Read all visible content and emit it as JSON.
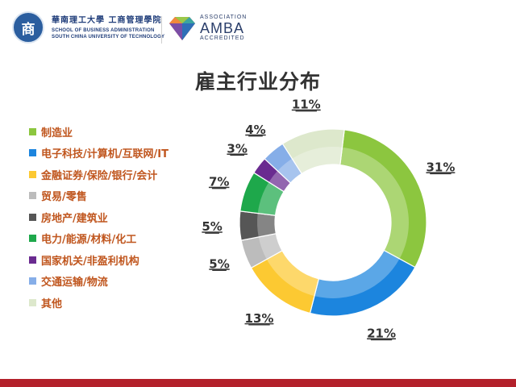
{
  "header": {
    "university_cn": "華南理工大學 工商管理學院",
    "university_en_1": "SCHOOL OF BUSINESS ADMINISTRATION",
    "university_en_2": "SOUTH CHINA UNIVERSITY OF TECHNOLOGY",
    "seal_char": "商",
    "accreditation_top": "ASSOCIATION",
    "accreditation_name": "AMBA",
    "accreditation_bottom": "ACCREDITED"
  },
  "colors": {
    "accent_bar": "#b3212b",
    "legend_text": "#c0561e"
  },
  "chart_data": {
    "type": "pie",
    "style": "donut",
    "title": "雇主行业分布",
    "legend_position": "left",
    "categories": [
      "制造业",
      "电子科技/计算机/互联网/IT",
      "金融证券/保险/银行/会计",
      "贸易/零售",
      "房地产/建筑业",
      "电力/能源/材料/化工",
      "国家机关/非盈利机构",
      "交通运输/物流",
      "其他"
    ],
    "values": [
      31,
      21,
      13,
      5,
      5,
      7,
      3,
      4,
      11
    ],
    "labels": [
      "31%",
      "21%",
      "13%",
      "5%",
      "5%",
      "7%",
      "3%",
      "4%",
      "11%"
    ],
    "colors": [
      "#8cc63f",
      "#1c85de",
      "#fcc932",
      "#bcbcbc",
      "#565656",
      "#1ea84b",
      "#6a2b90",
      "#86aee8",
      "#dde8cc"
    ]
  }
}
